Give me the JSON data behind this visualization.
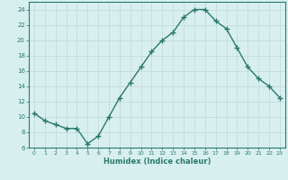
{
  "x": [
    0,
    1,
    2,
    3,
    4,
    5,
    6,
    7,
    8,
    9,
    10,
    11,
    12,
    13,
    14,
    15,
    16,
    17,
    18,
    19,
    20,
    21,
    22,
    23
  ],
  "y": [
    10.5,
    9.5,
    9.0,
    8.5,
    8.5,
    6.5,
    7.5,
    10.0,
    12.5,
    14.5,
    16.5,
    18.5,
    20.0,
    21.0,
    23.0,
    24.0,
    24.0,
    22.5,
    21.5,
    19.0,
    16.5,
    15.0,
    14.0,
    12.5
  ],
  "line_color": "#2a7a6a",
  "marker": "+",
  "bg_color": "#d8eff0",
  "grid_color": "#c0d8d8",
  "xlabel": "Humidex (Indice chaleur)",
  "xlim": [
    -0.5,
    23.5
  ],
  "ylim": [
    6,
    25
  ],
  "yticks": [
    6,
    8,
    10,
    12,
    14,
    16,
    18,
    20,
    22,
    24
  ],
  "xticks": [
    0,
    1,
    2,
    3,
    4,
    5,
    6,
    7,
    8,
    9,
    10,
    11,
    12,
    13,
    14,
    15,
    16,
    17,
    18,
    19,
    20,
    21,
    22,
    23
  ],
  "tick_color": "#2a7a6a",
  "axis_color": "#2a7a6a",
  "font_color": "#2a7a6a",
  "linewidth": 1.0,
  "markersize": 4,
  "markeredgewidth": 1.0
}
